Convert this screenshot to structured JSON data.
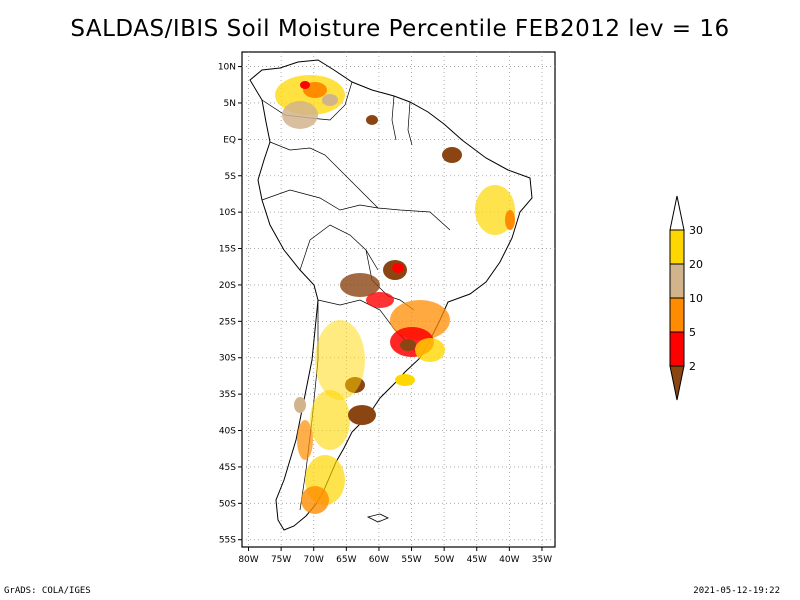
{
  "title": "SALDAS/IBIS Soil Moisture Percentile FEB2012 lev = 16",
  "footer": {
    "left": "GrADS: COLA/IGES",
    "right": "2021-05-12-19:22"
  },
  "map": {
    "lon_range": [
      -81,
      -33
    ],
    "lat_range": [
      -56,
      12
    ],
    "y_ticks": [
      "10N",
      "5N",
      "EQ",
      "5S",
      "10S",
      "15S",
      "20S",
      "25S",
      "30S",
      "35S",
      "40S",
      "45S",
      "50S",
      "55S"
    ],
    "x_ticks": [
      "80W",
      "75W",
      "70W",
      "65W",
      "60W",
      "55W",
      "50W",
      "45W",
      "40W",
      "35W"
    ],
    "grid": "dotted"
  },
  "legend": {
    "colors": [
      "#8b4513",
      "#ff0000",
      "#ff8c00",
      "#d2b48c",
      "#ffd700",
      "#ffffff"
    ],
    "labels": [
      "2",
      "5",
      "10",
      "20",
      "30"
    ]
  }
}
